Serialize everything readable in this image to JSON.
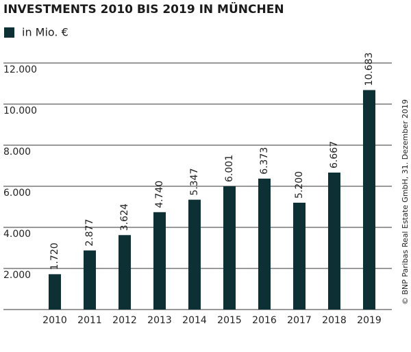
{
  "chart_data": {
    "type": "bar",
    "title": "INVESTMENTS 2010 BIS 2019 IN MÜNCHEN",
    "series": [
      {
        "name": "in Mio. €",
        "color": "#0d3035",
        "values": [
          1720,
          2877,
          3624,
          4740,
          5347,
          6001,
          6373,
          5200,
          6667,
          10683
        ],
        "value_labels": [
          "1.720",
          "2.877",
          "3.624",
          "4.740",
          "5.347",
          "6.001",
          "6.373",
          "5.200",
          "6.667",
          "10.683"
        ]
      }
    ],
    "categories": [
      "2010",
      "2011",
      "2012",
      "2013",
      "2014",
      "2015",
      "2016",
      "2017",
      "2018",
      "2019"
    ],
    "ylim": [
      0,
      12000
    ],
    "yticks": [
      {
        "value": 2000,
        "label": "2.000"
      },
      {
        "value": 4000,
        "label": "4.000"
      },
      {
        "value": 6000,
        "label": "6.000"
      },
      {
        "value": 8000,
        "label": "8.000"
      },
      {
        "value": 10000,
        "label": "10.000"
      },
      {
        "value": 12000,
        "label": "12.000"
      }
    ],
    "grid": true,
    "source": "© BNP Paribas Real Estate GmbH, 31. Dezember 2019"
  }
}
